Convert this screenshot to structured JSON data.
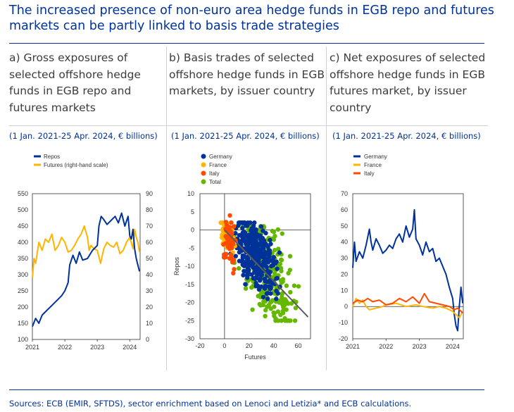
{
  "title": "The increased presence of non-euro area hedge funds in EGB repo and futures markets can be partly linked to basis trade strategies",
  "panels": [
    {
      "title": "a) Gross exposures of selected offshore hedge funds in EGB repo and futures markets",
      "subtitle": "(1 Jan. 2021-25 Apr. 2024, € billions)"
    },
    {
      "title": "b) Basis trades of selected offshore hedge funds in EGB markets, by issuer country",
      "subtitle": "(1 Jan. 2021-25 Apr. 2024, € billions)"
    },
    {
      "title": "c) Net exposures of selected offshore hedge funds in EGB futures market, by issuer country",
      "subtitle": "(1 Jan. 2021-25 Apr. 2024, € billions)"
    }
  ],
  "source": "Sources: ECB (EMIR, SFTDS), sector enrichment based on Lenoci and Letizia* and ECB calculations.",
  "colors": {
    "navy": "#003299",
    "yellow": "#ffb400",
    "orange": "#ff4b00",
    "green": "#65b800",
    "grey": "#5c5c5c"
  },
  "chart_data": [
    {
      "type": "line",
      "x_range": [
        2021,
        2024.32
      ],
      "xticks": [
        2021,
        2022,
        2023,
        2024
      ],
      "xtick_labels": [
        "2021",
        "2022",
        "2023",
        "2024"
      ],
      "ylim": [
        100,
        550
      ],
      "yticks": [
        100,
        150,
        200,
        250,
        300,
        350,
        400,
        450,
        500,
        550
      ],
      "ytick_labels": [
        "100",
        "150",
        "200",
        "250",
        "300",
        "350",
        "400",
        "450",
        "500",
        "550"
      ],
      "y2lim": [
        0,
        90
      ],
      "y2ticks": [
        0,
        10,
        20,
        30,
        40,
        50,
        60,
        70,
        80,
        90
      ],
      "y2tick_labels": [
        "0",
        "10",
        "20",
        "30",
        "40",
        "50",
        "60",
        "70",
        "80",
        "90"
      ],
      "legend": [
        "Repos",
        "Futures (right-hand scale)"
      ],
      "series": [
        {
          "name": "Repos",
          "axis": "left",
          "color": "#003299",
          "x": [
            2021.0,
            2021.1,
            2021.2,
            2021.3,
            2021.45,
            2021.6,
            2021.75,
            2021.9,
            2022.0,
            2022.1,
            2022.15,
            2022.25,
            2022.35,
            2022.45,
            2022.55,
            2022.7,
            2022.85,
            2023.0,
            2023.05,
            2023.12,
            2023.2,
            2023.3,
            2023.45,
            2023.55,
            2023.65,
            2023.75,
            2023.85,
            2023.95,
            2024.0,
            2024.05,
            2024.1,
            2024.15,
            2024.2,
            2024.25,
            2024.3
          ],
          "y": [
            140,
            165,
            150,
            175,
            190,
            205,
            220,
            235,
            250,
            275,
            330,
            360,
            335,
            370,
            345,
            350,
            375,
            390,
            450,
            480,
            470,
            455,
            470,
            480,
            460,
            490,
            450,
            480,
            420,
            410,
            440,
            380,
            350,
            330,
            310
          ]
        },
        {
          "name": "Futures (right-hand scale)",
          "axis": "right",
          "color": "#ffb400",
          "x": [
            2021.0,
            2021.05,
            2021.1,
            2021.2,
            2021.3,
            2021.4,
            2021.5,
            2021.6,
            2021.7,
            2021.8,
            2021.9,
            2022.0,
            2022.1,
            2022.2,
            2022.3,
            2022.4,
            2022.5,
            2022.6,
            2022.7,
            2022.75,
            2022.8,
            2022.9,
            2023.0,
            2023.1,
            2023.2,
            2023.3,
            2023.4,
            2023.5,
            2023.6,
            2023.7,
            2023.8,
            2023.9,
            2024.0,
            2024.1,
            2024.15,
            2024.2,
            2024.25,
            2024.3
          ],
          "y": [
            38,
            50,
            47,
            60,
            55,
            62,
            60,
            65,
            55,
            58,
            63,
            60,
            54,
            55,
            58,
            62,
            65,
            70,
            63,
            55,
            58,
            56,
            55,
            47,
            56,
            60,
            58,
            57,
            60,
            53,
            55,
            60,
            63,
            56,
            68,
            63,
            60,
            54
          ]
        }
      ]
    },
    {
      "type": "scatter",
      "xlabel": "Futures",
      "ylabel": "Repos",
      "xlim": [
        -20,
        70
      ],
      "xticks": [
        -20,
        0,
        20,
        40,
        60
      ],
      "xtick_labels": [
        "-20",
        "0",
        "20",
        "40",
        "60"
      ],
      "ylim": [
        -30,
        10
      ],
      "yticks": [
        -30,
        -25,
        -20,
        -15,
        -10,
        -5,
        0,
        5,
        10
      ],
      "ytick_labels": [
        "-30",
        "-25",
        "-20",
        "-15",
        "-10",
        "-5",
        "0",
        "5",
        "10"
      ],
      "legend": [
        "Germany",
        "France",
        "Italy",
        "Total"
      ],
      "clusters": [
        {
          "name": "Total",
          "color": "#65b800",
          "cx": 35,
          "cy": -12,
          "sx": 11,
          "sy": 6,
          "n": 260,
          "xmin": 8,
          "xmax": 68,
          "ymin": -25,
          "ymax": 1
        },
        {
          "name": "Germany",
          "color": "#003299",
          "cx": 25,
          "cy": -7,
          "sx": 8,
          "sy": 4.5,
          "n": 330,
          "xmin": 2,
          "xmax": 57,
          "ymin": -19,
          "ymax": 2
        },
        {
          "name": "France",
          "color": "#ffb400",
          "cx": 2,
          "cy": -2,
          "sx": 2.5,
          "sy": 2,
          "n": 70,
          "xmin": -8,
          "xmax": 11,
          "ymin": -10,
          "ymax": 2
        },
        {
          "name": "Italy",
          "color": "#ff4b00",
          "cx": 4,
          "cy": -3,
          "sx": 2.5,
          "sy": 3,
          "n": 70,
          "xmin": -2,
          "xmax": 12,
          "ymin": -12,
          "ymax": 4
        }
      ],
      "fit_line": {
        "x": [
          0,
          68
        ],
        "y": [
          0,
          -24
        ],
        "color": "#5c5c5c"
      }
    },
    {
      "type": "line",
      "x_range": [
        2021,
        2024.32
      ],
      "xticks": [
        2021,
        2022,
        2023,
        2024
      ],
      "xtick_labels": [
        "2021",
        "2022",
        "2023",
        "2024"
      ],
      "ylim": [
        -20,
        70
      ],
      "yticks": [
        -20,
        -10,
        0,
        10,
        20,
        30,
        40,
        50,
        60,
        70
      ],
      "ytick_labels": [
        "-20",
        "-10",
        "0",
        "10",
        "20",
        "30",
        "40",
        "50",
        "60",
        "70"
      ],
      "legend": [
        "Germany",
        "France",
        "Italy"
      ],
      "series": [
        {
          "name": "Germany",
          "color": "#003299",
          "x": [
            2021.0,
            2021.05,
            2021.1,
            2021.2,
            2021.3,
            2021.4,
            2021.5,
            2021.55,
            2021.6,
            2021.7,
            2021.8,
            2021.9,
            2022.0,
            2022.1,
            2022.2,
            2022.3,
            2022.4,
            2022.5,
            2022.6,
            2022.7,
            2022.8,
            2022.85,
            2022.9,
            2023.0,
            2023.1,
            2023.2,
            2023.3,
            2023.4,
            2023.5,
            2023.6,
            2023.7,
            2023.8,
            2023.9,
            2024.0,
            2024.05,
            2024.1,
            2024.15,
            2024.2,
            2024.25,
            2024.3
          ],
          "y": [
            24,
            40,
            28,
            34,
            30,
            38,
            48,
            40,
            35,
            42,
            38,
            33,
            35,
            38,
            36,
            42,
            45,
            40,
            50,
            43,
            48,
            60,
            42,
            38,
            32,
            40,
            34,
            36,
            28,
            30,
            25,
            20,
            12,
            5,
            -5,
            -12,
            -15,
            0,
            12,
            2
          ]
        },
        {
          "name": "France",
          "color": "#ffb400",
          "x": [
            2021.0,
            2021.1,
            2021.2,
            2021.3,
            2021.4,
            2021.5,
            2021.7,
            2021.9,
            2022.0,
            2022.3,
            2022.6,
            2022.9,
            2023.1,
            2023.4,
            2023.6,
            2023.8,
            2024.0,
            2024.1,
            2024.2,
            2024.3
          ],
          "y": [
            0,
            5,
            2,
            4,
            0,
            -2,
            -1,
            0,
            1,
            2,
            0,
            1,
            0,
            -1,
            0,
            -1,
            -3,
            -5,
            -7,
            -3
          ]
        },
        {
          "name": "Italy",
          "color": "#ff4b00",
          "x": [
            2021.0,
            2021.15,
            2021.3,
            2021.45,
            2021.6,
            2021.8,
            2022.0,
            2022.2,
            2022.4,
            2022.6,
            2022.8,
            2023.0,
            2023.15,
            2023.3,
            2023.5,
            2023.7,
            2023.9,
            2024.05,
            2024.15,
            2024.3
          ],
          "y": [
            2,
            4,
            3,
            5,
            3,
            4,
            1,
            2,
            5,
            3,
            6,
            2,
            8,
            3,
            2,
            1,
            0,
            -2,
            -1,
            -4
          ]
        }
      ]
    }
  ]
}
